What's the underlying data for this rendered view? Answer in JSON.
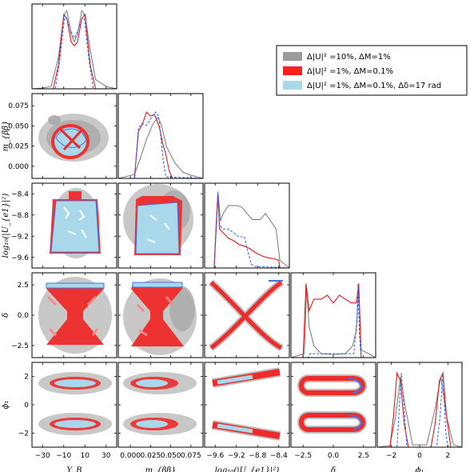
{
  "chart_data": {
    "type": "corner",
    "parameters": [
      "Y_B",
      "m_bb",
      "log10_Ue2",
      "delta",
      "phi1"
    ],
    "axis_labels": [
      "Y_B",
      "m_{ββ}",
      "log₁₀(|U_{e1}|²)",
      "δ",
      "ϕ₁"
    ],
    "ranges": [
      [
        -40,
        40
      ],
      [
        -0.015,
        0.09
      ],
      [
        -9.8,
        -8.2
      ],
      [
        -3.5,
        3.5
      ],
      [
        -3,
        3
      ]
    ],
    "ticks": [
      {
        "values": [
          -30,
          -10,
          10,
          30
        ],
        "labels": [
          "−30",
          "−10",
          "10",
          "30"
        ]
      },
      {
        "values": [
          0.0,
          0.025,
          0.05,
          0.075
        ],
        "labels": [
          "0.000",
          "0.025",
          "0.050",
          "0.075"
        ]
      },
      {
        "values": [
          -9.6,
          -9.2,
          -8.8,
          -8.4
        ],
        "labels": [
          "−9.6",
          "−9.2",
          "−8.8",
          "−8.4"
        ]
      },
      {
        "values": [
          -2.5,
          0.0,
          2.5
        ],
        "labels": [
          "−2.5",
          "0.0",
          "2.5"
        ]
      },
      {
        "values": [
          -2,
          0,
          2
        ],
        "labels": [
          "−2",
          "0",
          "2"
        ]
      }
    ],
    "legend": {
      "placement": "top-right",
      "entries": [
        {
          "label": "Δ|U|² =10%, ΔM=1%",
          "color": "#9a9a9a"
        },
        {
          "label": "Δ|U|² =1%, ΔM=0.1%",
          "color": "#ff2020"
        },
        {
          "label": "Δ|U|² =1%, ΔM=0.1%, Δδ=17 rad",
          "color": "#a8d8ea"
        }
      ]
    },
    "series": [
      {
        "color": "#777777",
        "style": "solid",
        "marginals": [
          [
            [
              -40,
              0
            ],
            [
              -30,
              0.01
            ],
            [
              -22,
              0.03
            ],
            [
              -15,
              0.4
            ],
            [
              -10,
              0.95
            ],
            [
              -7,
              1.0
            ],
            [
              -3,
              0.7
            ],
            [
              0,
              0.6
            ],
            [
              3,
              0.7
            ],
            [
              7,
              1.0
            ],
            [
              10,
              0.95
            ],
            [
              15,
              0.5
            ],
            [
              20,
              0.12
            ],
            [
              30,
              0.03
            ],
            [
              40,
              0
            ]
          ],
          [
            [
              -0.015,
              0
            ],
            [
              0.005,
              0.05
            ],
            [
              0.012,
              0.25
            ],
            [
              0.02,
              0.5
            ],
            [
              0.028,
              0.7
            ],
            [
              0.034,
              0.78
            ],
            [
              0.038,
              0.7
            ],
            [
              0.045,
              0.4
            ],
            [
              0.055,
              0.2
            ],
            [
              0.065,
              0.08
            ],
            [
              0.075,
              0.04
            ],
            [
              0.09,
              0
            ]
          ],
          [
            [
              -9.8,
              0
            ],
            [
              -9.62,
              0.0
            ],
            [
              -9.58,
              0.5
            ],
            [
              -9.55,
              0.98
            ],
            [
              -9.5,
              0.6
            ],
            [
              -9.45,
              0.7
            ],
            [
              -9.35,
              0.8
            ],
            [
              -9.2,
              0.8
            ],
            [
              -9.1,
              0.78
            ],
            [
              -9.0,
              0.7
            ],
            [
              -8.9,
              0.62
            ],
            [
              -8.75,
              0.62
            ],
            [
              -8.65,
              0.7
            ],
            [
              -8.55,
              0.6
            ],
            [
              -8.45,
              0.5
            ],
            [
              -8.38,
              0.1
            ],
            [
              -8.2,
              0
            ]
          ],
          [
            [
              -3.5,
              0
            ],
            [
              -2.4,
              0.05
            ],
            [
              -2.2,
              0.9
            ],
            [
              -2.0,
              0.4
            ],
            [
              -1.6,
              0.15
            ],
            [
              -1.0,
              0.05
            ],
            [
              0,
              0.04
            ],
            [
              1.0,
              0.05
            ],
            [
              1.6,
              0.15
            ],
            [
              1.9,
              0.35
            ],
            [
              2.1,
              0.9
            ],
            [
              2.3,
              0.1
            ],
            [
              3.5,
              0
            ]
          ],
          [
            [
              -3,
              0
            ],
            [
              -2.1,
              0.02
            ],
            [
              -1.7,
              0.4
            ],
            [
              -1.35,
              0.9
            ],
            [
              -1.0,
              0.5
            ],
            [
              -0.5,
              0.03
            ],
            [
              0.5,
              0.03
            ],
            [
              1.1,
              0.5
            ],
            [
              1.5,
              0.9
            ],
            [
              1.9,
              0.4
            ],
            [
              2.4,
              0.03
            ],
            [
              3,
              0
            ]
          ]
        ]
      },
      {
        "color": "#e4181c",
        "style": "solid",
        "marginals": [
          [
            [
              -40,
              0
            ],
            [
              -20,
              0.0
            ],
            [
              -15,
              0.3
            ],
            [
              -10,
              0.95
            ],
            [
              -7,
              0.9
            ],
            [
              -3,
              0.6
            ],
            [
              0,
              0.55
            ],
            [
              3,
              0.6
            ],
            [
              7,
              0.9
            ],
            [
              10,
              0.95
            ],
            [
              15,
              0.3
            ],
            [
              20,
              0
            ],
            [
              40,
              0
            ]
          ],
          [
            [
              -0.015,
              0
            ],
            [
              0.005,
              0
            ],
            [
              0.01,
              0.6
            ],
            [
              0.015,
              0.7
            ],
            [
              0.02,
              0.85
            ],
            [
              0.025,
              0.8
            ],
            [
              0.03,
              0.82
            ],
            [
              0.036,
              0.65
            ],
            [
              0.04,
              0.45
            ],
            [
              0.044,
              0.3
            ],
            [
              0.048,
              0.1
            ],
            [
              0.052,
              0
            ],
            [
              0.09,
              0
            ]
          ],
          [
            [
              -9.8,
              0
            ],
            [
              -9.62,
              0
            ],
            [
              -9.57,
              0.7
            ],
            [
              -9.55,
              0.95
            ],
            [
              -9.52,
              0.5
            ],
            [
              -9.45,
              0.45
            ],
            [
              -9.35,
              0.38
            ],
            [
              -9.25,
              0.35
            ],
            [
              -9.15,
              0.3
            ],
            [
              -9.05,
              0.28
            ],
            [
              -8.95,
              0.25
            ],
            [
              -8.85,
              0.2
            ],
            [
              -8.7,
              0.15
            ],
            [
              -8.6,
              0.13
            ],
            [
              -8.5,
              0.12
            ],
            [
              -8.4,
              0.1
            ],
            [
              -8.38,
              0
            ],
            [
              -8.2,
              0
            ]
          ],
          [
            [
              -3.5,
              0
            ],
            [
              -2.5,
              0
            ],
            [
              -2.25,
              0.95
            ],
            [
              -2.0,
              0.6
            ],
            [
              -1.6,
              0.75
            ],
            [
              -1.0,
              0.75
            ],
            [
              -0.5,
              0.8
            ],
            [
              0,
              0.7
            ],
            [
              0.5,
              0.8
            ],
            [
              1.0,
              0.75
            ],
            [
              1.5,
              0.7
            ],
            [
              1.9,
              0.7
            ],
            [
              2.1,
              0.95
            ],
            [
              2.3,
              0
            ],
            [
              3.5,
              0
            ]
          ],
          [
            [
              -3,
              0
            ],
            [
              -2.1,
              0
            ],
            [
              -1.85,
              0.4
            ],
            [
              -1.6,
              0.95
            ],
            [
              -1.35,
              0.85
            ],
            [
              -1.1,
              0.3
            ],
            [
              -0.8,
              0
            ],
            [
              0.8,
              0
            ],
            [
              1.1,
              0.3
            ],
            [
              1.4,
              0.85
            ],
            [
              1.65,
              0.95
            ],
            [
              1.9,
              0.4
            ],
            [
              2.2,
              0
            ],
            [
              3,
              0
            ]
          ]
        ]
      },
      {
        "color": "#1f5fff",
        "style": "dashed",
        "marginals": [
          [
            [
              -40,
              0
            ],
            [
              -18,
              0
            ],
            [
              -14,
              0.35
            ],
            [
              -9,
              0.95
            ],
            [
              -6,
              0.85
            ],
            [
              -2,
              0.7
            ],
            [
              0,
              0.65
            ],
            [
              2,
              0.7
            ],
            [
              6,
              0.85
            ],
            [
              9,
              0.95
            ],
            [
              14,
              0.35
            ],
            [
              18,
              0
            ],
            [
              40,
              0
            ]
          ],
          [
            [
              -0.015,
              0
            ],
            [
              0.005,
              0
            ],
            [
              0.01,
              0.65
            ],
            [
              0.014,
              0.7
            ],
            [
              0.02,
              0.68
            ],
            [
              0.026,
              0.78
            ],
            [
              0.031,
              0.85
            ],
            [
              0.035,
              0.8
            ],
            [
              0.038,
              0.5
            ],
            [
              0.041,
              0.2
            ],
            [
              0.044,
              0.02
            ],
            [
              0.09,
              0
            ]
          ],
          [
            [
              -9.8,
              0
            ],
            [
              -9.62,
              0
            ],
            [
              -9.58,
              0.6
            ],
            [
              -9.55,
              0.95
            ],
            [
              -9.52,
              0.55
            ],
            [
              -9.45,
              0.5
            ],
            [
              -9.35,
              0.5
            ],
            [
              -9.25,
              0.45
            ],
            [
              -9.15,
              0.4
            ],
            [
              -9.05,
              0.4
            ],
            [
              -8.98,
              0.2
            ],
            [
              -8.92,
              0.05
            ],
            [
              -8.85,
              0.02
            ],
            [
              -8.2,
              0
            ]
          ],
          [
            [
              -3.5,
              0
            ],
            [
              -2.1,
              0
            ],
            [
              -1.9,
              0.05
            ],
            [
              1.7,
              0.05
            ],
            [
              1.95,
              0.5
            ],
            [
              2.05,
              0.95
            ],
            [
              2.15,
              0.3
            ],
            [
              2.3,
              0
            ],
            [
              3.5,
              0
            ]
          ],
          [
            [
              -3,
              0
            ],
            [
              -1.6,
              0
            ],
            [
              -1.3,
              0.95
            ],
            [
              -1.05,
              0.4
            ],
            [
              -0.9,
              0
            ],
            [
              1.2,
              0
            ],
            [
              1.45,
              0.4
            ],
            [
              1.65,
              0.95
            ],
            [
              1.85,
              0.2
            ],
            [
              2.0,
              0
            ],
            [
              3,
              0
            ]
          ]
        ]
      }
    ]
  }
}
